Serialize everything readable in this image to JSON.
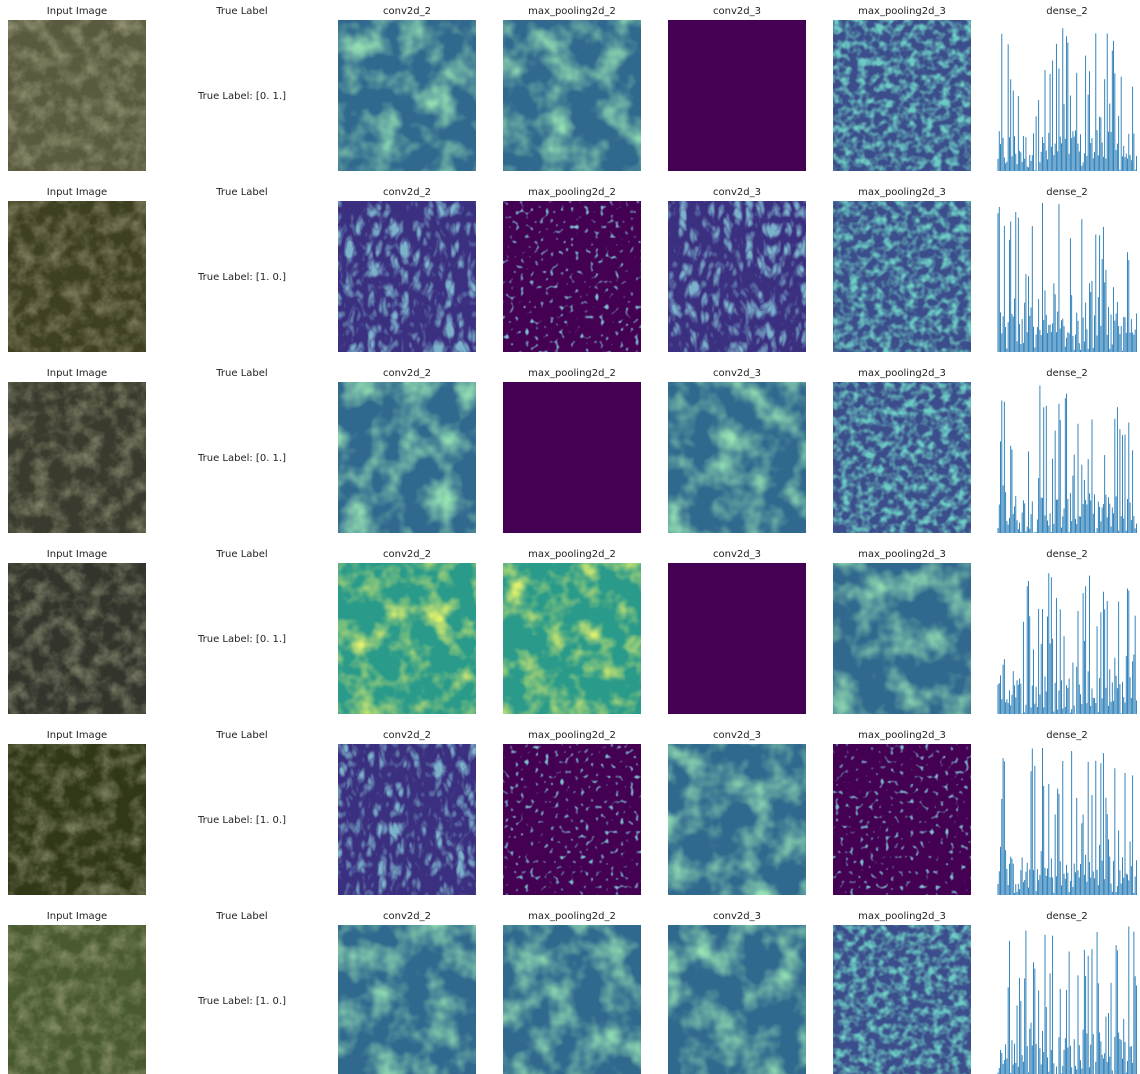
{
  "rows": [
    {
      "input_title": "Input Image",
      "label_title": "True Label",
      "label_text": "True Label: [0. 1.]",
      "panels": [
        "conv2d_2",
        "max_pooling2d_2",
        "conv2d_3",
        "max_pooling2d_3",
        "dense_2"
      ]
    },
    {
      "input_title": "Input Image",
      "label_title": "True Label",
      "label_text": "True Label: [1. 0.]",
      "panels": [
        "conv2d_2",
        "max_pooling2d_2",
        "conv2d_3",
        "max_pooling2d_3",
        "dense_2"
      ]
    },
    {
      "input_title": "Input Image",
      "label_title": "True Label",
      "label_text": "True Label: [0. 1.]",
      "panels": [
        "conv2d_2",
        "max_pooling2d_2",
        "conv2d_3",
        "max_pooling2d_3",
        "dense_2"
      ]
    },
    {
      "input_title": "Input Image",
      "label_title": "True Label",
      "label_text": "True Label: [0. 1.]",
      "panels": [
        "conv2d_2",
        "max_pooling2d_2",
        "conv2d_3",
        "max_pooling2d_3",
        "dense_2"
      ]
    },
    {
      "input_title": "Input Image",
      "label_title": "True Label",
      "label_text": "True Label: [1. 0.]",
      "panels": [
        "conv2d_2",
        "max_pooling2d_2",
        "conv2d_3",
        "max_pooling2d_3",
        "dense_2"
      ]
    },
    {
      "input_title": "Input Image",
      "label_title": "True Label",
      "label_text": "True Label: [1. 0.]",
      "panels": [
        "conv2d_2",
        "max_pooling2d_2",
        "conv2d_3",
        "max_pooling2d_3",
        "dense_2"
      ]
    }
  ]
}
